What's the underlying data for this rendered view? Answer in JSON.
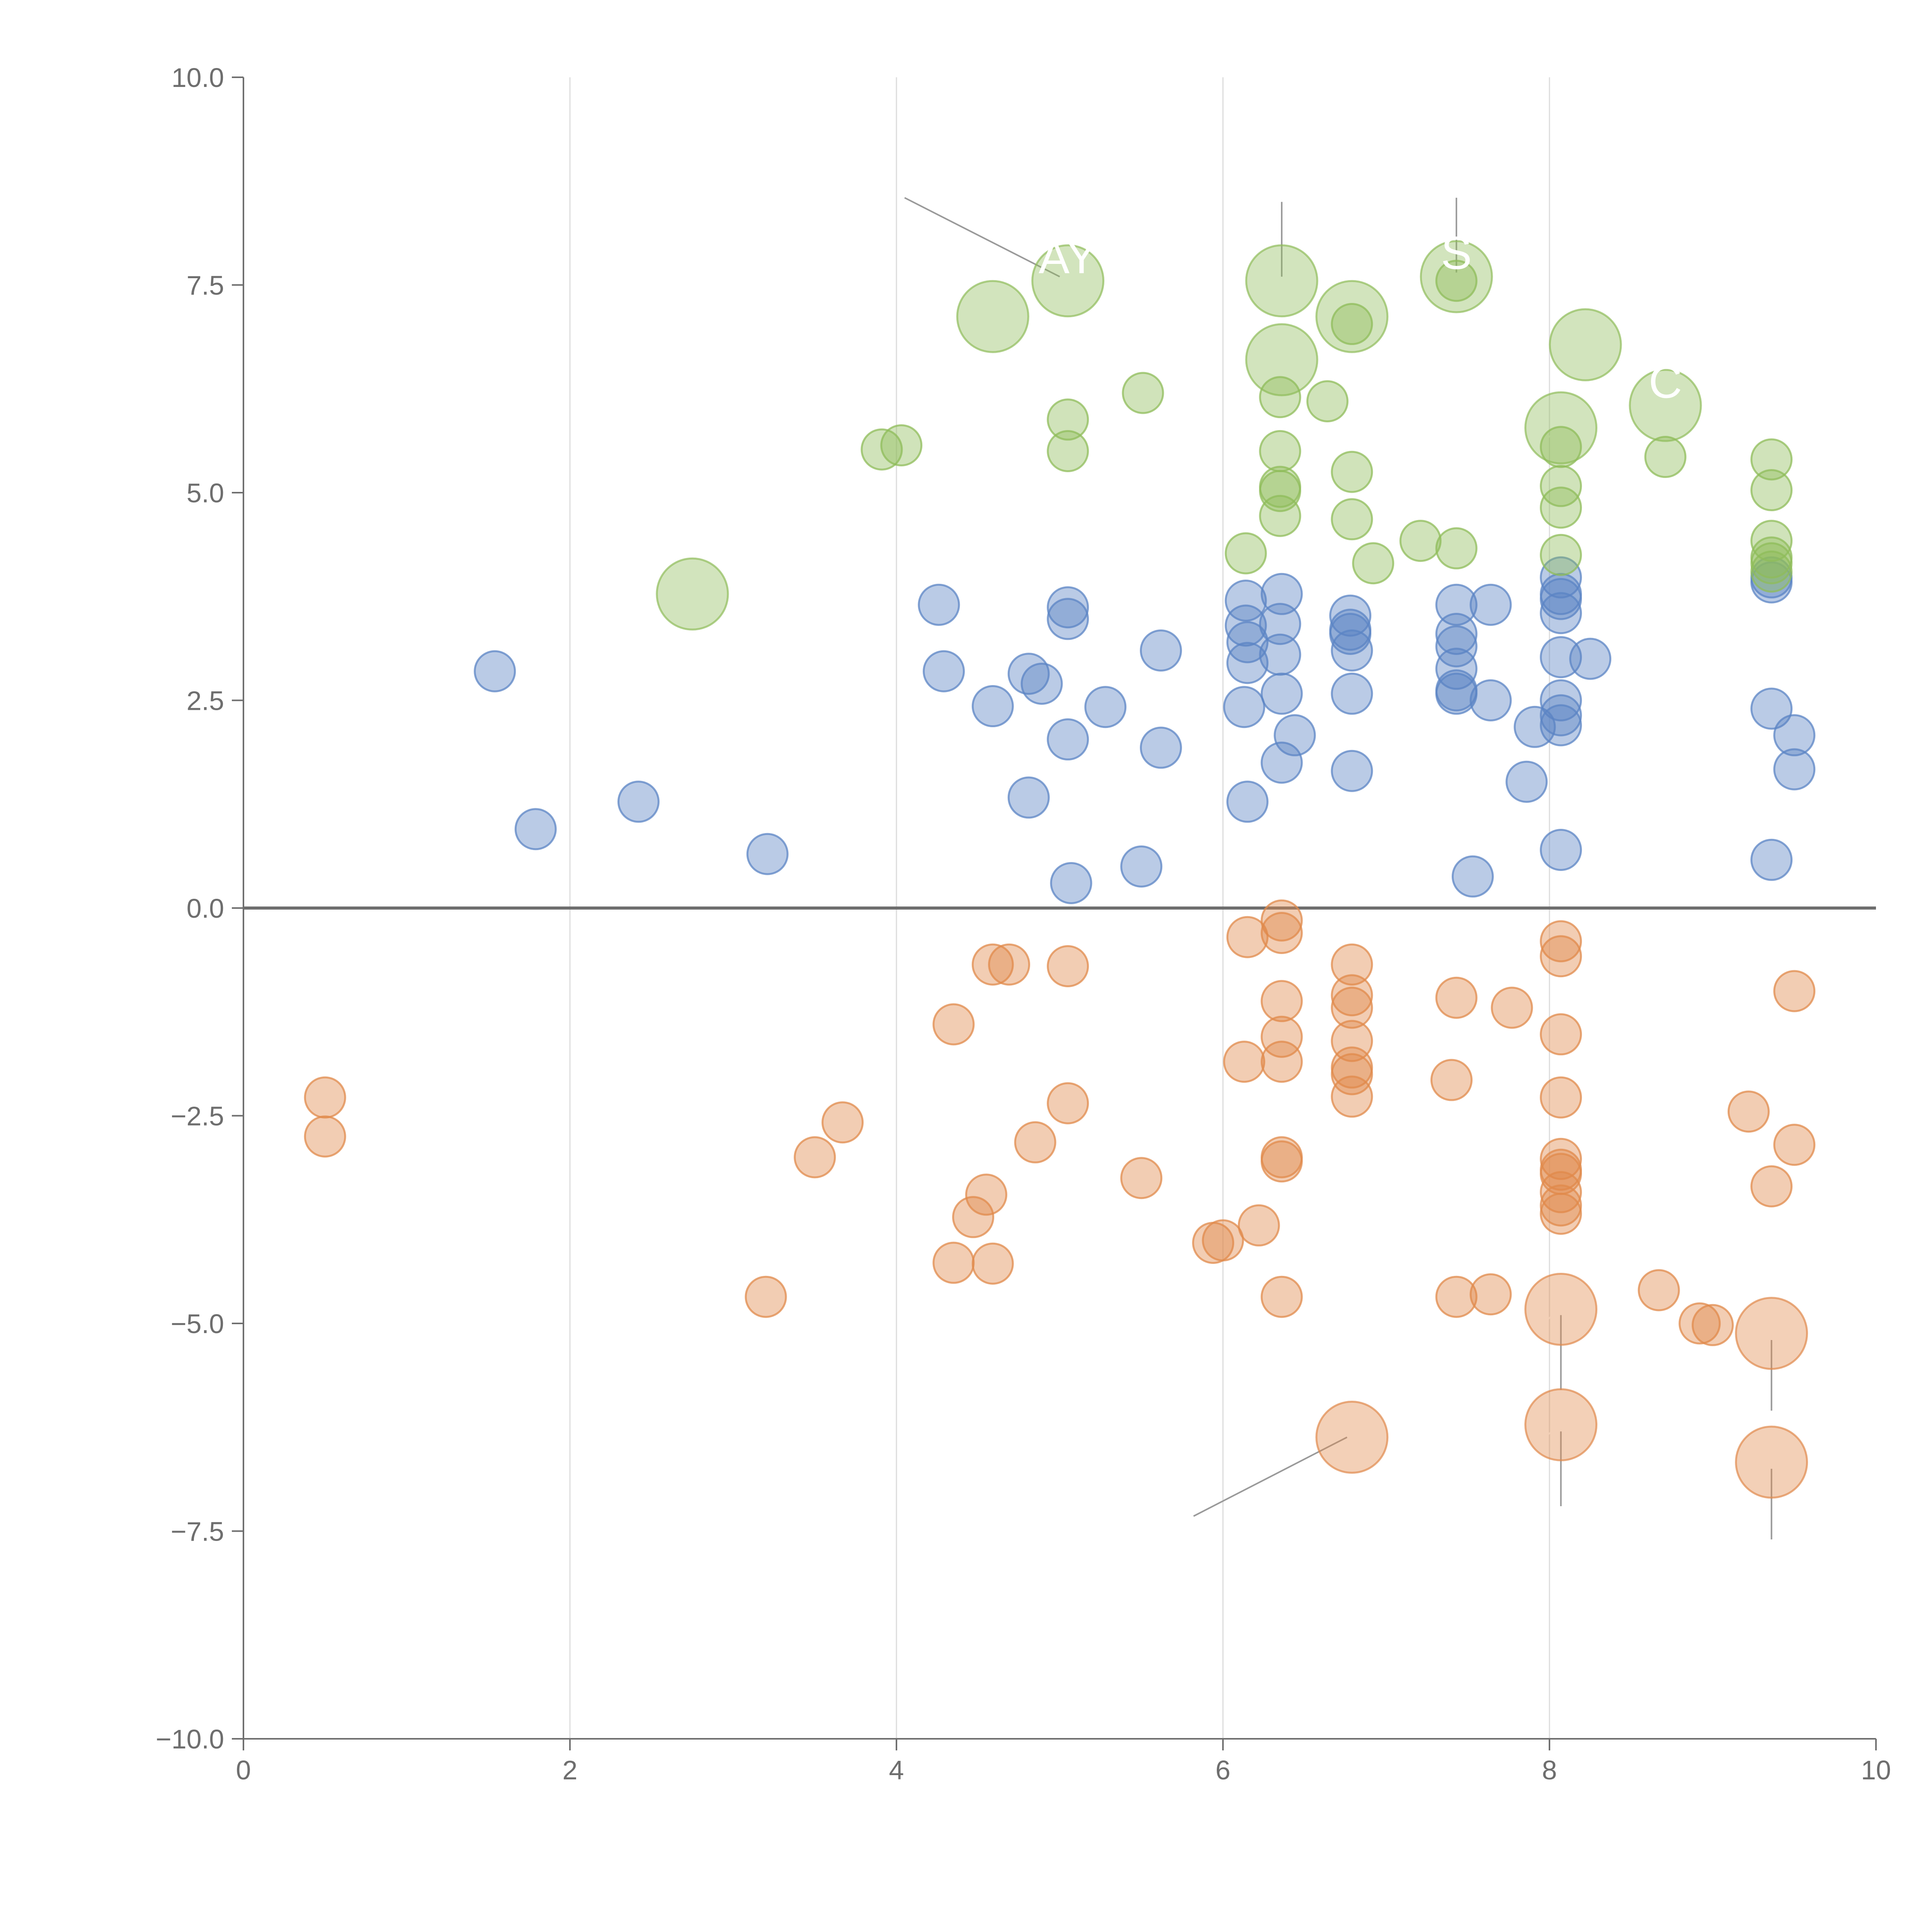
{
  "chart_data": {
    "type": "scatter",
    "title": "",
    "xlabel": "",
    "ylabel": "",
    "xlim": [
      0,
      10
    ],
    "ylim": [
      -10,
      10
    ],
    "x_ticks": [
      "0",
      "2",
      "4",
      "6",
      "8",
      "10"
    ],
    "y_ticks": [
      "10.0",
      "7.5",
      "5.0",
      "2.5",
      "0.0",
      "−2.5",
      "−5.0",
      "−7.5",
      "−10.0"
    ],
    "grid": "vertical lines at x ticks",
    "zero_line": true,
    "colors": {
      "green": "#8fbc5a",
      "blue": "#5b84c4",
      "orange": "#e0894b",
      "axis": "#6e6e6e",
      "grid": "#dcdcdc"
    },
    "series": [
      {
        "color_key": "blue",
        "points": [
          [
            1.54,
            2.85
          ],
          [
            1.79,
            0.95
          ],
          [
            2.42,
            1.28
          ],
          [
            3.21,
            0.65
          ],
          [
            4.26,
            3.65
          ],
          [
            4.29,
            2.85
          ],
          [
            4.59,
            2.43
          ],
          [
            4.81,
            1.33
          ],
          [
            4.81,
            2.82
          ],
          [
            4.89,
            2.7
          ],
          [
            5.05,
            3.62
          ],
          [
            5.05,
            3.48
          ],
          [
            5.05,
            2.03
          ],
          [
            5.07,
            0.3
          ],
          [
            5.28,
            2.42
          ],
          [
            5.5,
            0.5
          ],
          [
            5.62,
            3.1
          ],
          [
            5.62,
            1.93
          ],
          [
            6.13,
            2.42
          ],
          [
            6.14,
            3.4
          ],
          [
            6.14,
            3.7
          ],
          [
            6.15,
            3.2
          ],
          [
            6.15,
            2.95
          ],
          [
            6.15,
            1.28
          ],
          [
            6.35,
            3.05
          ],
          [
            6.35,
            3.42
          ],
          [
            6.36,
            3.78
          ],
          [
            6.36,
            2.58
          ],
          [
            6.36,
            1.75
          ],
          [
            6.44,
            2.08
          ],
          [
            6.78,
            3.52
          ],
          [
            6.78,
            3.35
          ],
          [
            6.78,
            3.3
          ],
          [
            6.79,
            3.1
          ],
          [
            6.79,
            2.58
          ],
          [
            6.79,
            1.65
          ],
          [
            7.43,
            3.65
          ],
          [
            7.43,
            3.3
          ],
          [
            7.43,
            3.15
          ],
          [
            7.43,
            2.88
          ],
          [
            7.43,
            2.62
          ],
          [
            7.43,
            2.58
          ],
          [
            7.53,
            0.38
          ],
          [
            7.64,
            3.65
          ],
          [
            7.64,
            2.5
          ],
          [
            7.86,
            1.52
          ],
          [
            7.91,
            2.18
          ],
          [
            8.07,
            3.98
          ],
          [
            8.07,
            3.78
          ],
          [
            8.07,
            3.72
          ],
          [
            8.07,
            3.55
          ],
          [
            8.07,
            3.02
          ],
          [
            8.07,
            2.5
          ],
          [
            8.07,
            2.32
          ],
          [
            8.07,
            2.2
          ],
          [
            8.07,
            0.7
          ],
          [
            8.25,
            3.0
          ],
          [
            9.36,
            3.98
          ],
          [
            9.36,
            3.92
          ],
          [
            9.36,
            2.4
          ],
          [
            9.36,
            0.58
          ],
          [
            9.5,
            2.08
          ],
          [
            9.5,
            1.67
          ]
        ]
      },
      {
        "color_key": "green",
        "points": [
          [
            3.91,
            5.52
          ],
          [
            4.03,
            5.57
          ],
          [
            5.05,
            5.88
          ],
          [
            5.05,
            5.5
          ],
          [
            5.51,
            6.2
          ],
          [
            6.14,
            4.27
          ],
          [
            6.35,
            6.15
          ],
          [
            6.35,
            5.5
          ],
          [
            6.35,
            5.07
          ],
          [
            6.35,
            5.02
          ],
          [
            6.35,
            4.72
          ],
          [
            6.64,
            6.1
          ],
          [
            6.79,
            7.03
          ],
          [
            6.79,
            5.25
          ],
          [
            6.79,
            4.68
          ],
          [
            6.92,
            4.15
          ],
          [
            7.21,
            4.42
          ],
          [
            7.43,
            7.55
          ],
          [
            7.43,
            4.33
          ],
          [
            8.07,
            5.55
          ],
          [
            8.07,
            5.08
          ],
          [
            8.07,
            4.82
          ],
          [
            8.07,
            4.25
          ],
          [
            8.71,
            5.43
          ],
          [
            9.36,
            5.4
          ],
          [
            9.36,
            5.03
          ],
          [
            9.36,
            4.42
          ],
          [
            9.36,
            4.22
          ],
          [
            9.36,
            4.15
          ],
          [
            9.36,
            4.05
          ]
        ]
      },
      {
        "color_key": "orange",
        "points": [
          [
            0.5,
            -2.28
          ],
          [
            0.5,
            -2.75
          ],
          [
            3.2,
            -4.68
          ],
          [
            3.5,
            -3.0
          ],
          [
            3.67,
            -2.58
          ],
          [
            4.35,
            -1.4
          ],
          [
            4.35,
            -4.27
          ],
          [
            4.47,
            -3.72
          ],
          [
            4.55,
            -3.45
          ],
          [
            4.59,
            -0.68
          ],
          [
            4.59,
            -4.28
          ],
          [
            4.69,
            -0.68
          ],
          [
            4.85,
            -2.82
          ],
          [
            5.05,
            -0.7
          ],
          [
            5.05,
            -2.35
          ],
          [
            5.5,
            -3.25
          ],
          [
            5.94,
            -4.03
          ],
          [
            6.0,
            -4.0
          ],
          [
            6.15,
            -0.35
          ],
          [
            6.13,
            -1.85
          ],
          [
            6.22,
            -3.82
          ],
          [
            6.36,
            -0.15
          ],
          [
            6.36,
            -0.3
          ],
          [
            6.36,
            -1.12
          ],
          [
            6.36,
            -1.55
          ],
          [
            6.36,
            -1.85
          ],
          [
            6.36,
            -3.0
          ],
          [
            6.36,
            -3.05
          ],
          [
            6.36,
            -4.68
          ],
          [
            6.79,
            -0.68
          ],
          [
            6.79,
            -1.05
          ],
          [
            6.79,
            -1.2
          ],
          [
            6.79,
            -1.6
          ],
          [
            6.79,
            -1.92
          ],
          [
            6.79,
            -2.0
          ],
          [
            6.79,
            -2.27
          ],
          [
            7.4,
            -2.07
          ],
          [
            7.43,
            -1.08
          ],
          [
            7.43,
            -4.68
          ],
          [
            7.64,
            -4.65
          ],
          [
            7.77,
            -1.2
          ],
          [
            8.07,
            -0.4
          ],
          [
            8.07,
            -0.58
          ],
          [
            8.07,
            -1.52
          ],
          [
            8.07,
            -2.28
          ],
          [
            8.07,
            -3.02
          ],
          [
            8.07,
            -3.15
          ],
          [
            8.07,
            -3.2
          ],
          [
            8.07,
            -3.42
          ],
          [
            8.07,
            -3.58
          ],
          [
            8.07,
            -3.68
          ],
          [
            8.67,
            -4.6
          ],
          [
            8.92,
            -5.0
          ],
          [
            9.0,
            -5.02
          ],
          [
            9.22,
            -2.45
          ],
          [
            9.36,
            -3.35
          ],
          [
            9.5,
            -1.0
          ],
          [
            9.5,
            -2.85
          ]
        ]
      }
    ],
    "highlighted": [
      {
        "color_key": "green",
        "x": 2.75,
        "y": 3.78,
        "label": ""
      },
      {
        "color_key": "green",
        "x": 4.59,
        "y": 7.12,
        "label": ""
      },
      {
        "color_key": "green",
        "x": 5.05,
        "y": 7.55,
        "label": "AY"
      },
      {
        "color_key": "green",
        "x": 6.36,
        "y": 7.55,
        "label": ""
      },
      {
        "color_key": "green",
        "x": 6.36,
        "y": 6.6,
        "label": ""
      },
      {
        "color_key": "green",
        "x": 6.79,
        "y": 7.12,
        "label": ""
      },
      {
        "color_key": "green",
        "x": 7.43,
        "y": 7.6,
        "label": "S"
      },
      {
        "color_key": "green",
        "x": 8.22,
        "y": 6.78,
        "label": ""
      },
      {
        "color_key": "green",
        "x": 8.71,
        "y": 6.05,
        "label": "C"
      },
      {
        "color_key": "green",
        "x": 8.07,
        "y": 5.78,
        "label": ""
      },
      {
        "color_key": "orange",
        "x": 6.79,
        "y": -6.37,
        "label": ""
      },
      {
        "color_key": "orange",
        "x": 8.07,
        "y": -4.83,
        "label": ""
      },
      {
        "color_key": "orange",
        "x": 8.07,
        "y": -6.22,
        "label": ""
      },
      {
        "color_key": "orange",
        "x": 9.36,
        "y": -5.12,
        "label": ""
      },
      {
        "color_key": "orange",
        "x": 9.36,
        "y": -6.67,
        "label": ""
      }
    ]
  }
}
